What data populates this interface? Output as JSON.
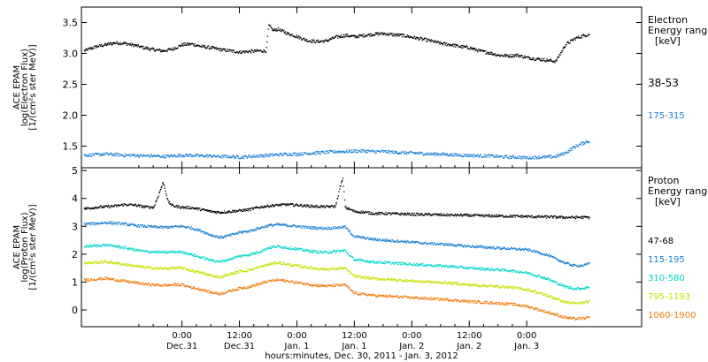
{
  "chart_data": [
    {
      "type": "scatter",
      "panel": "electron",
      "ylabel": [
        "ACE EPAM",
        "log(Electron Flux)",
        "[1/(cm²s ster MeV)]"
      ],
      "ylim": [
        1.15,
        3.75
      ],
      "yticks": [
        "1.5",
        "2.0",
        "2.5",
        "3.0",
        "3.5"
      ],
      "ytick_values": [
        1.5,
        2.0,
        2.5,
        3.0,
        3.5
      ],
      "legend_title": [
        "Electron",
        "Energy ranges",
        "[keV]"
      ],
      "series": [
        {
          "name": "38-53",
          "color": "#000000",
          "x": [
            -20.5,
            -18,
            -16,
            -14,
            -12,
            -10,
            -8,
            -6,
            -4,
            -2,
            0,
            2,
            4,
            6,
            8,
            10,
            12,
            14,
            16,
            17.5,
            18,
            19,
            20,
            22,
            24,
            26,
            28,
            30,
            32,
            34,
            36,
            38,
            40,
            42,
            44,
            46,
            48,
            50,
            52,
            54,
            56,
            58,
            60,
            62,
            64,
            66,
            68,
            70,
            72,
            74,
            76,
            78,
            80,
            82,
            84,
            85
          ],
          "y": [
            3.05,
            3.12,
            3.15,
            3.18,
            3.17,
            3.14,
            3.1,
            3.07,
            3.05,
            3.08,
            3.15,
            3.16,
            3.12,
            3.1,
            3.07,
            3.05,
            3.03,
            3.04,
            3.05,
            3.05,
            3.46,
            3.38,
            3.4,
            3.33,
            3.28,
            3.22,
            3.2,
            3.21,
            3.27,
            3.3,
            3.28,
            3.3,
            3.32,
            3.33,
            3.31,
            3.3,
            3.27,
            3.24,
            3.21,
            3.17,
            3.15,
            3.12,
            3.1,
            3.05,
            3.02,
            2.98,
            2.97,
            2.98,
            2.94,
            2.92,
            2.9,
            2.88,
            3.15,
            3.25,
            3.3,
            3.32
          ]
        },
        {
          "name": "175-315",
          "color": "#1a7fd4",
          "x": [
            -20.5,
            -18,
            -16,
            -14,
            -12,
            -10,
            -8,
            -6,
            -4,
            -2,
            0,
            2,
            4,
            6,
            8,
            10,
            12,
            14,
            16,
            18,
            20,
            22,
            24,
            26,
            28,
            30,
            32,
            34,
            36,
            38,
            40,
            42,
            44,
            46,
            48,
            50,
            52,
            54,
            56,
            58,
            60,
            62,
            64,
            66,
            68,
            70,
            72,
            74,
            76,
            78,
            80,
            82,
            84,
            85
          ],
          "y": [
            1.36,
            1.37,
            1.38,
            1.37,
            1.36,
            1.36,
            1.35,
            1.35,
            1.34,
            1.35,
            1.36,
            1.36,
            1.35,
            1.35,
            1.34,
            1.34,
            1.33,
            1.34,
            1.35,
            1.36,
            1.37,
            1.38,
            1.38,
            1.39,
            1.4,
            1.41,
            1.42,
            1.42,
            1.43,
            1.43,
            1.42,
            1.42,
            1.41,
            1.4,
            1.4,
            1.39,
            1.38,
            1.38,
            1.37,
            1.36,
            1.36,
            1.35,
            1.35,
            1.34,
            1.33,
            1.33,
            1.32,
            1.33,
            1.33,
            1.34,
            1.4,
            1.5,
            1.57,
            1.59
          ]
        }
      ]
    },
    {
      "type": "scatter",
      "panel": "proton",
      "ylabel": [
        "ACE EPAM",
        "log(Proton Flux)",
        "[1/(cm²s ster MeV)]"
      ],
      "ylim": [
        -0.6,
        5.1
      ],
      "yticks": [
        "0",
        "1",
        "2",
        "3",
        "4",
        "5"
      ],
      "ytick_values": [
        0,
        1,
        2,
        3,
        4,
        5
      ],
      "legend_title": [
        "Proton",
        "Energy ranges",
        "[keV]"
      ],
      "xlabel": "hours:minutes, Dec. 30, 2011 - Jan. 3, 2012",
      "xlim": [
        -21,
        96
      ],
      "xticks": [
        {
          "x": 0,
          "time": "0:00",
          "date": "Dec.31"
        },
        {
          "x": 12,
          "time": "12:00",
          "date": "Dec.31"
        },
        {
          "x": 24,
          "time": "0:00",
          "date": "Jan. 1"
        },
        {
          "x": 36,
          "time": "12:00",
          "date": "Jan. 1"
        },
        {
          "x": 48,
          "time": "0:00",
          "date": "Jan. 2"
        },
        {
          "x": 60,
          "time": "12:00",
          "date": "Jan. 2"
        },
        {
          "x": 72,
          "time": "0:00",
          "date": "Jan. 3"
        }
      ],
      "series": [
        {
          "name": "47-68",
          "color": "#000000",
          "x": [
            -20.5,
            -18,
            -16,
            -14,
            -12,
            -10,
            -8,
            -6,
            -4,
            -3,
            -2,
            0,
            2,
            4,
            6,
            8,
            10,
            12,
            14,
            16,
            18,
            20,
            22,
            24,
            26,
            28,
            30,
            32,
            33,
            33.5,
            34,
            36,
            38,
            40,
            42,
            44,
            46,
            48,
            50,
            52,
            54,
            56,
            58,
            60,
            62,
            64,
            66,
            68,
            70,
            72,
            74,
            76,
            78,
            80,
            82,
            84,
            85
          ],
          "y": [
            3.65,
            3.7,
            3.72,
            3.75,
            3.8,
            3.78,
            3.72,
            3.7,
            4.6,
            3.9,
            3.75,
            3.7,
            3.68,
            3.62,
            3.55,
            3.52,
            3.55,
            3.58,
            3.62,
            3.7,
            3.75,
            3.78,
            3.8,
            3.78,
            3.75,
            3.73,
            3.72,
            3.74,
            4.5,
            4.7,
            3.7,
            3.55,
            3.52,
            3.48,
            3.48,
            3.47,
            3.46,
            3.45,
            3.44,
            3.44,
            3.43,
            3.42,
            3.42,
            3.41,
            3.4,
            3.39,
            3.39,
            3.38,
            3.38,
            3.37,
            3.36,
            3.36,
            3.35,
            3.34,
            3.34,
            3.34,
            3.34
          ]
        },
        {
          "name": "115-195",
          "color": "#1a7fd4",
          "x": [
            -20.5,
            -18,
            -16,
            -14,
            -12,
            -10,
            -8,
            -6,
            -4,
            -2,
            0,
            2,
            4,
            6,
            8,
            10,
            12,
            14,
            16,
            18,
            20,
            22,
            24,
            26,
            28,
            30,
            32,
            34,
            35,
            36,
            38,
            40,
            42,
            44,
            46,
            48,
            50,
            52,
            54,
            56,
            58,
            60,
            62,
            64,
            66,
            68,
            70,
            72,
            74,
            76,
            78,
            80,
            82,
            84,
            85
          ],
          "y": [
            3.1,
            3.12,
            3.15,
            3.13,
            3.1,
            3.05,
            3.02,
            3.0,
            2.98,
            3.0,
            3.02,
            2.95,
            2.85,
            2.7,
            2.62,
            2.7,
            2.8,
            2.85,
            2.95,
            3.05,
            3.08,
            3.05,
            3.02,
            2.98,
            2.96,
            2.95,
            2.97,
            3.0,
            2.8,
            2.65,
            2.6,
            2.55,
            2.52,
            2.5,
            2.48,
            2.45,
            2.42,
            2.4,
            2.38,
            2.36,
            2.32,
            2.3,
            2.28,
            2.26,
            2.24,
            2.22,
            2.2,
            2.18,
            2.1,
            2.0,
            1.85,
            1.7,
            1.6,
            1.62,
            1.7
          ]
        },
        {
          "name": "310-580",
          "color": "#00d8cc",
          "x": [
            -20.5,
            -18,
            -16,
            -14,
            -12,
            -10,
            -8,
            -6,
            -4,
            -2,
            0,
            2,
            4,
            6,
            8,
            10,
            12,
            14,
            16,
            18,
            20,
            22,
            24,
            26,
            28,
            30,
            32,
            34,
            35,
            36,
            38,
            40,
            42,
            44,
            46,
            48,
            50,
            52,
            54,
            56,
            58,
            60,
            62,
            64,
            66,
            68,
            70,
            72,
            74,
            76,
            78,
            80,
            82,
            84,
            85
          ],
          "y": [
            2.3,
            2.32,
            2.35,
            2.3,
            2.25,
            2.18,
            2.12,
            2.1,
            2.08,
            2.1,
            2.1,
            2.0,
            1.9,
            1.8,
            1.75,
            1.85,
            1.95,
            2.0,
            2.1,
            2.25,
            2.3,
            2.25,
            2.2,
            2.15,
            2.1,
            2.08,
            2.12,
            2.15,
            1.95,
            1.82,
            1.78,
            1.74,
            1.72,
            1.7,
            1.68,
            1.66,
            1.64,
            1.62,
            1.6,
            1.58,
            1.55,
            1.52,
            1.5,
            1.48,
            1.46,
            1.44,
            1.4,
            1.35,
            1.25,
            1.15,
            1.0,
            0.85,
            0.78,
            0.8,
            0.85
          ]
        },
        {
          "name": "795-1193",
          "color": "#c8e000",
          "x": [
            -20.5,
            -18,
            -16,
            -14,
            -12,
            -10,
            -8,
            -6,
            -4,
            -2,
            0,
            2,
            4,
            6,
            8,
            10,
            12,
            14,
            16,
            18,
            20,
            22,
            24,
            26,
            28,
            30,
            32,
            34,
            35,
            36,
            38,
            40,
            42,
            44,
            46,
            48,
            50,
            52,
            54,
            56,
            58,
            60,
            62,
            64,
            66,
            68,
            70,
            72,
            74,
            76,
            78,
            80,
            82,
            84,
            85
          ],
          "y": [
            1.7,
            1.72,
            1.75,
            1.7,
            1.65,
            1.6,
            1.55,
            1.52,
            1.5,
            1.52,
            1.52,
            1.42,
            1.35,
            1.25,
            1.2,
            1.3,
            1.4,
            1.45,
            1.55,
            1.65,
            1.72,
            1.65,
            1.6,
            1.55,
            1.5,
            1.48,
            1.5,
            1.52,
            1.35,
            1.22,
            1.18,
            1.14,
            1.12,
            1.1,
            1.08,
            1.06,
            1.04,
            1.02,
            1.0,
            0.98,
            0.95,
            0.92,
            0.9,
            0.88,
            0.86,
            0.84,
            0.8,
            0.75,
            0.65,
            0.55,
            0.42,
            0.3,
            0.25,
            0.28,
            0.32
          ]
        },
        {
          "name": "1060-1900",
          "color": "#f07e10",
          "x": [
            -20.5,
            -18,
            -16,
            -14,
            -12,
            -10,
            -8,
            -6,
            -4,
            -2,
            0,
            2,
            4,
            6,
            8,
            10,
            12,
            14,
            16,
            18,
            20,
            22,
            24,
            26,
            28,
            30,
            32,
            34,
            35,
            36,
            38,
            40,
            42,
            44,
            46,
            48,
            50,
            52,
            54,
            56,
            58,
            60,
            62,
            64,
            66,
            68,
            70,
            72,
            74,
            76,
            78,
            80,
            82,
            84,
            85
          ],
          "y": [
            1.1,
            1.12,
            1.15,
            1.1,
            1.05,
            1.0,
            0.95,
            0.92,
            0.9,
            0.92,
            0.92,
            0.82,
            0.75,
            0.65,
            0.6,
            0.7,
            0.8,
            0.85,
            0.95,
            1.05,
            1.1,
            1.05,
            1.0,
            0.95,
            0.9,
            0.88,
            0.9,
            0.92,
            0.75,
            0.62,
            0.58,
            0.54,
            0.52,
            0.5,
            0.48,
            0.46,
            0.44,
            0.42,
            0.4,
            0.38,
            0.35,
            0.32,
            0.3,
            0.28,
            0.26,
            0.24,
            0.2,
            0.15,
            0.05,
            -0.05,
            -0.15,
            -0.25,
            -0.3,
            -0.28,
            -0.24
          ]
        }
      ]
    }
  ]
}
